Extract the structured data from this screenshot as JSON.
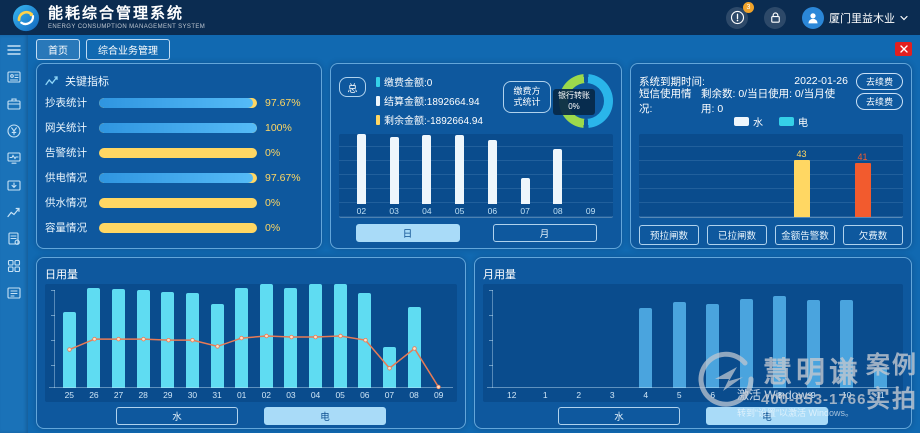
{
  "header": {
    "title": "能耗综合管理系统",
    "subtitle": "ENERGY CONSUMPTION MANAGEMENT SYSTEM",
    "notification_count": "3",
    "user_name": "厦门里益木业"
  },
  "tabs": [
    {
      "label": "首页"
    },
    {
      "label": "综合业务管理"
    }
  ],
  "sidebar_icons": [
    "menu-icon",
    "id-card-icon",
    "briefcase-icon",
    "currency-yuan-icon",
    "monitor-wave-icon",
    "folder-download-icon",
    "trend-chart-icon",
    "document-settings-icon",
    "apps-grid-icon",
    "monitor-icon"
  ],
  "key_indicators": {
    "title": "关键指标",
    "items": [
      {
        "label": "抄表统计",
        "value": "97.67%",
        "pct": 97.67
      },
      {
        "label": "网关统计",
        "value": "100%",
        "pct": 100
      },
      {
        "label": "告警统计",
        "value": "0%",
        "pct": 0
      },
      {
        "label": "供电情况",
        "value": "97.67%",
        "pct": 97.67
      },
      {
        "label": "供水情况",
        "value": "0%",
        "pct": 0
      },
      {
        "label": "容量情况",
        "value": "0%",
        "pct": 0
      }
    ],
    "fill_color": "#3fa8f0",
    "track_color": "#ffd763"
  },
  "payment": {
    "total_label": "总",
    "legend": [
      {
        "label": "缴费金额:0",
        "color": "#35d0e8"
      },
      {
        "label": "结算金额:1892664.94",
        "color": "#eef6fc"
      },
      {
        "label": "剩余金额:-1892664.94",
        "color": "#ffd763"
      }
    ],
    "method_label_line1": "缴费方",
    "method_label_line2": "式统计",
    "donut": {
      "label": "银行转账",
      "value": "0%",
      "colors": [
        "#9cd94c",
        "#2ab5ea"
      ]
    },
    "chart": {
      "type": "bar",
      "categories": [
        "02",
        "03",
        "04",
        "05",
        "06",
        "07",
        "08",
        "09"
      ],
      "values": [
        100,
        96,
        99,
        99,
        91,
        37,
        78,
        0
      ],
      "bar_color": "#eef6fc"
    },
    "buttons": [
      {
        "label": "日",
        "active": true
      },
      {
        "label": "月",
        "active": false
      }
    ]
  },
  "system": {
    "rows": [
      {
        "label": "系统到期时间:",
        "value": "2022-01-26",
        "button": "去续费"
      },
      {
        "label": "短信使用情况:",
        "value": "剩余数: 0/当日使用: 0/当月使用: 0",
        "button": "去续费"
      }
    ],
    "legend": [
      {
        "label": "水",
        "color": "#eef6fc"
      },
      {
        "label": "电",
        "color": "#35d0e8"
      }
    ],
    "chart": {
      "type": "bar",
      "categories": [
        "预拉闸数",
        "已拉闸数",
        "金额告警数",
        "欠费数"
      ],
      "values": [
        0,
        0,
        43,
        41
      ],
      "max": 50,
      "colors": [
        "#ffd763",
        "#ffd763",
        "#ffd763",
        "#f25b2e"
      ]
    },
    "buttons": [
      "预拉闸数",
      "已拉闸数",
      "金额告警数",
      "欠费数"
    ]
  },
  "daily_usage": {
    "title": "日用量",
    "chart": {
      "type": "bar+line",
      "categories": [
        "25",
        "26",
        "27",
        "28",
        "29",
        "30",
        "31",
        "01",
        "02",
        "03",
        "04",
        "05",
        "06",
        "07",
        "08",
        "09"
      ],
      "bar_values": [
        73,
        96,
        95,
        94,
        92,
        91,
        81,
        96,
        100,
        96,
        100,
        100,
        91,
        39,
        78,
        0
      ],
      "line_values": [
        37,
        47,
        47,
        47,
        46,
        46,
        40,
        48,
        50,
        49,
        49,
        50,
        46,
        19,
        38,
        1
      ],
      "bar_color": "#5fdcf2",
      "line_color": "#e97b55"
    },
    "buttons": [
      {
        "label": "水",
        "active": false
      },
      {
        "label": "电",
        "active": true
      }
    ]
  },
  "monthly_usage": {
    "title": "月用量",
    "chart": {
      "type": "bar",
      "categories": [
        "12",
        "1",
        "2",
        "3",
        "4",
        "5",
        "6",
        "7",
        "8",
        "9",
        "10",
        "11"
      ],
      "values": [
        0,
        0,
        0,
        0,
        77,
        83,
        81,
        86,
        88,
        85,
        85,
        19
      ],
      "bar_color": "#4aa4de"
    },
    "buttons": [
      {
        "label": "水",
        "active": false
      },
      {
        "label": "电",
        "active": true
      }
    ]
  },
  "watermark": {
    "brand": "慧明谦",
    "tag_top": "案例",
    "tag_bottom": "实拍",
    "phone": "400-853-1766"
  },
  "windows_activation": {
    "line1": "激活 Windows",
    "line2": "转到“设置”以激活 Windows。"
  }
}
